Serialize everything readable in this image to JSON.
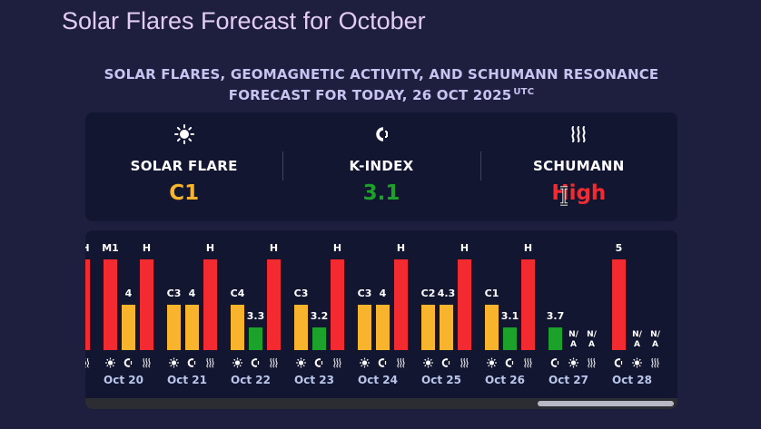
{
  "page_title": "Solar Flares Forecast for October",
  "subtitle": {
    "line1": "SOLAR FLARES, GEOMAGNETIC ACTIVITY, AND SCHUMANN RESONANCE",
    "line2": "FORECAST FOR TODAY, 26 OCT 2025",
    "tz": "UTC"
  },
  "summary": {
    "flare": {
      "icon": "sun-icon",
      "label": "SOLAR FLARE",
      "value": "C1",
      "color": "#f8b42c"
    },
    "kindex": {
      "icon": "magnet-icon",
      "label": "K-INDEX",
      "value": "3.1",
      "color": "#1ca12a"
    },
    "schumann": {
      "icon": "waves-icon",
      "label": "SCHUMANN",
      "value": "High",
      "color": "#f32b31"
    }
  },
  "colors": {
    "red": "#f32b31",
    "orange": "#f8b42c",
    "green": "#1ca12a",
    "date_text": "#b8c6ea"
  },
  "chart_data": {
    "type": "bar",
    "categories": [
      "Oct 20",
      "Oct 21",
      "Oct 22",
      "Oct 23",
      "Oct 24",
      "Oct 25",
      "Oct 26",
      "Oct 27",
      "Oct 28"
    ],
    "days": [
      {
        "date": "Oct 20",
        "bars": [
          {
            "kind": "flare",
            "label": "M1",
            "level": 1.0,
            "color": "red"
          },
          {
            "kind": "kindex",
            "label": "4",
            "level": 0.5,
            "color": "orange"
          },
          {
            "kind": "schumann",
            "label": "H",
            "level": 1.0,
            "color": "red"
          }
        ]
      },
      {
        "date": "Oct 21",
        "bars": [
          {
            "kind": "flare",
            "label": "C3",
            "level": 0.5,
            "color": "orange"
          },
          {
            "kind": "kindex",
            "label": "4",
            "level": 0.5,
            "color": "orange"
          },
          {
            "kind": "schumann",
            "label": "H",
            "level": 1.0,
            "color": "red"
          }
        ]
      },
      {
        "date": "Oct 22",
        "bars": [
          {
            "kind": "flare",
            "label": "C4",
            "level": 0.5,
            "color": "orange"
          },
          {
            "kind": "kindex",
            "label": "3.3",
            "level": 0.25,
            "color": "green"
          },
          {
            "kind": "schumann",
            "label": "H",
            "level": 1.0,
            "color": "red"
          }
        ]
      },
      {
        "date": "Oct 23",
        "bars": [
          {
            "kind": "flare",
            "label": "C3",
            "level": 0.5,
            "color": "orange"
          },
          {
            "kind": "kindex",
            "label": "3.2",
            "level": 0.25,
            "color": "green"
          },
          {
            "kind": "schumann",
            "label": "H",
            "level": 1.0,
            "color": "red"
          }
        ]
      },
      {
        "date": "Oct 24",
        "bars": [
          {
            "kind": "flare",
            "label": "C3",
            "level": 0.5,
            "color": "orange"
          },
          {
            "kind": "kindex",
            "label": "4",
            "level": 0.5,
            "color": "orange"
          },
          {
            "kind": "schumann",
            "label": "H",
            "level": 1.0,
            "color": "red"
          }
        ]
      },
      {
        "date": "Oct 25",
        "bars": [
          {
            "kind": "flare",
            "label": "C2",
            "level": 0.5,
            "color": "orange"
          },
          {
            "kind": "kindex",
            "label": "4.3",
            "level": 0.5,
            "color": "orange"
          },
          {
            "kind": "schumann",
            "label": "H",
            "level": 1.0,
            "color": "red"
          }
        ]
      },
      {
        "date": "Oct 26",
        "bars": [
          {
            "kind": "flare",
            "label": "C1",
            "level": 0.5,
            "color": "orange"
          },
          {
            "kind": "kindex",
            "label": "3.1",
            "level": 0.25,
            "color": "green"
          },
          {
            "kind": "schumann",
            "label": "H",
            "level": 1.0,
            "color": "red"
          }
        ]
      },
      {
        "date": "Oct 27",
        "bars": [
          {
            "kind": "kindex",
            "label": "3.7",
            "level": 0.25,
            "color": "green"
          },
          {
            "kind": "flare",
            "label": "N/A",
            "level": 0,
            "color": "none"
          },
          {
            "kind": "schumann",
            "label": "N/A",
            "level": 0,
            "color": "none"
          }
        ]
      },
      {
        "date": "Oct 28",
        "bars": [
          {
            "kind": "kindex",
            "label": "5",
            "level": 1.0,
            "color": "red"
          },
          {
            "kind": "flare",
            "label": "N/A",
            "level": 0,
            "color": "none"
          },
          {
            "kind": "schumann",
            "label": "N/A",
            "level": 0,
            "color": "none"
          }
        ]
      }
    ],
    "leading_partial": {
      "label": "H",
      "color": "red"
    }
  }
}
